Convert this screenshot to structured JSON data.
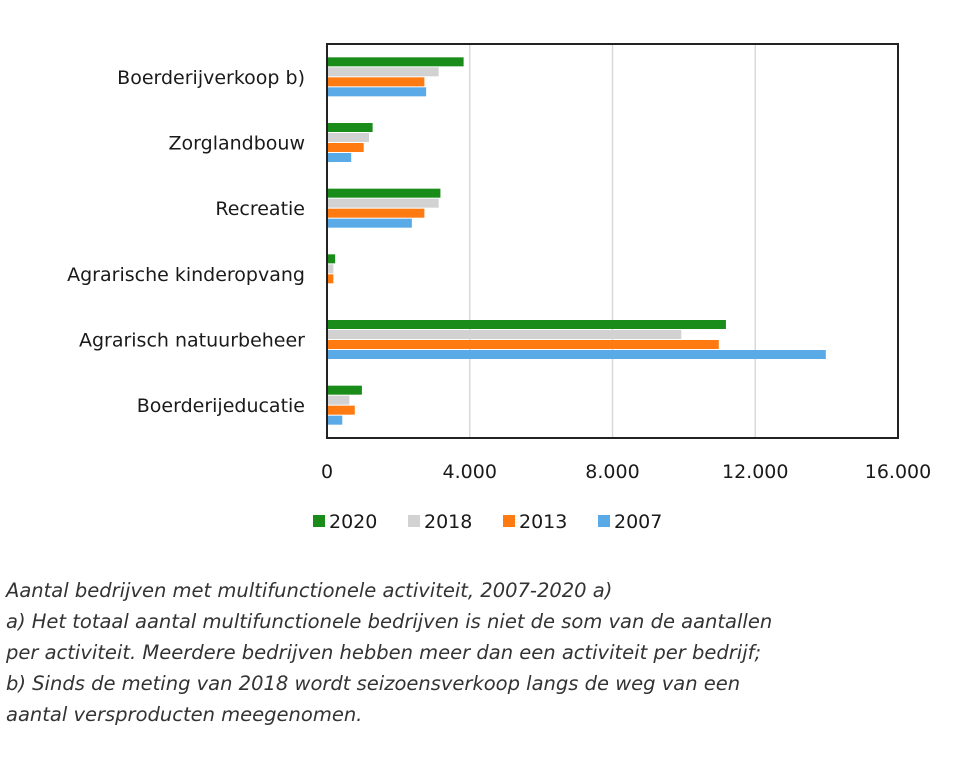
{
  "chart_data": {
    "type": "bar",
    "orientation": "horizontal",
    "categories": [
      "Boerderijverkoop b)",
      "Zorglandbouw",
      "Recreatie",
      "Agrarische kinderopvang",
      "Agrarisch natuurbeheer",
      "Boerderijeducatie"
    ],
    "series": [
      {
        "name": "2020",
        "color": "#1a8c1a",
        "values": [
          3800,
          1250,
          3150,
          200,
          11150,
          950
        ]
      },
      {
        "name": "2018",
        "color": "#d2d2d2",
        "values": [
          3100,
          1150,
          3100,
          150,
          9900,
          600
        ]
      },
      {
        "name": "2013",
        "color": "#ff7a10",
        "values": [
          2700,
          1000,
          2700,
          150,
          10950,
          750
        ]
      },
      {
        "name": "2007",
        "color": "#5aaae8",
        "values": [
          2750,
          650,
          2350,
          0,
          13950,
          400
        ]
      }
    ],
    "xlim": [
      0,
      16000
    ],
    "xticks": [
      0,
      4000,
      8000,
      12000,
      16000
    ],
    "xtick_labels": [
      "0",
      "4.000",
      "8.000",
      "12.000",
      "16.000"
    ],
    "grid": "vertical",
    "legend_position": "bottom"
  },
  "caption": {
    "title": "Aantal bedrijven met multifunctionele activiteit, 2007-2020 a)",
    "notes": [
      "a) Het totaal aantal multifunctionele bedrijven is niet de som van de aantallen",
      "per activiteit. Meerdere bedrijven hebben meer dan een activiteit per bedrijf;",
      "b) Sinds de meting van 2018 wordt seizoensverkoop langs de weg van een",
      "aantal versproducten meegenomen."
    ]
  }
}
